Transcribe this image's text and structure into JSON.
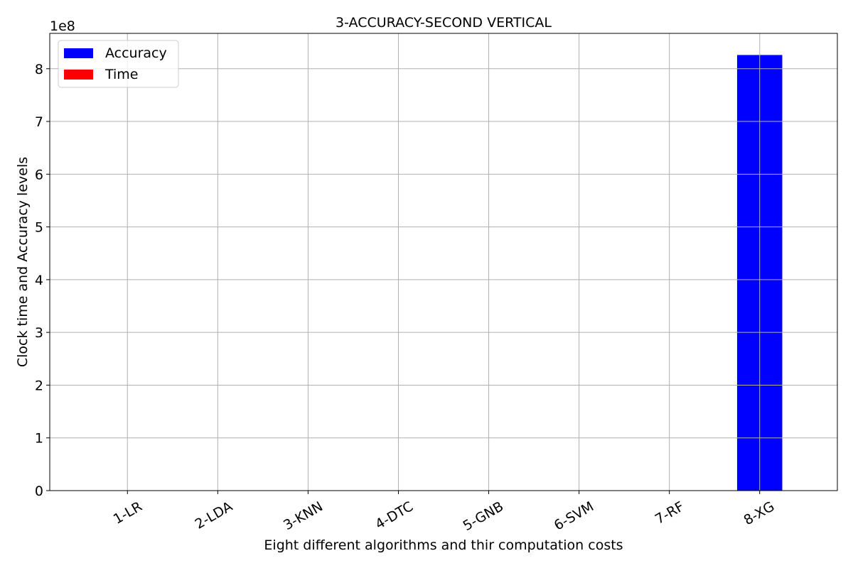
{
  "chart_data": {
    "type": "bar",
    "title": "3-ACCURACY-SECOND VERTICAL",
    "xlabel": "Eight different algorithms and thir computation costs",
    "ylabel": "Clock time and Accuracy levels",
    "y_offset_label": "1e8",
    "categories": [
      "1-LR",
      "2-LDA",
      "3-KNN",
      "4-DTC",
      "5-GNB",
      "6-SVM",
      "7-RF",
      "8-XG"
    ],
    "series": [
      {
        "name": "Accuracy",
        "color": "#0000ff",
        "values": [
          0,
          0,
          0,
          0,
          0,
          0,
          0,
          826000000
        ]
      },
      {
        "name": "Time",
        "color": "#ff0000",
        "values": [
          0,
          0,
          0,
          0,
          0,
          0,
          0,
          0
        ]
      }
    ],
    "y_ticks": [
      0,
      100000000,
      200000000,
      300000000,
      400000000,
      500000000,
      600000000,
      700000000,
      800000000
    ],
    "y_tick_labels": [
      "0",
      "1",
      "2",
      "3",
      "4",
      "5",
      "6",
      "7",
      "8"
    ],
    "ylim": [
      0,
      867000000
    ],
    "grid": true,
    "legend_position": "top-left"
  }
}
